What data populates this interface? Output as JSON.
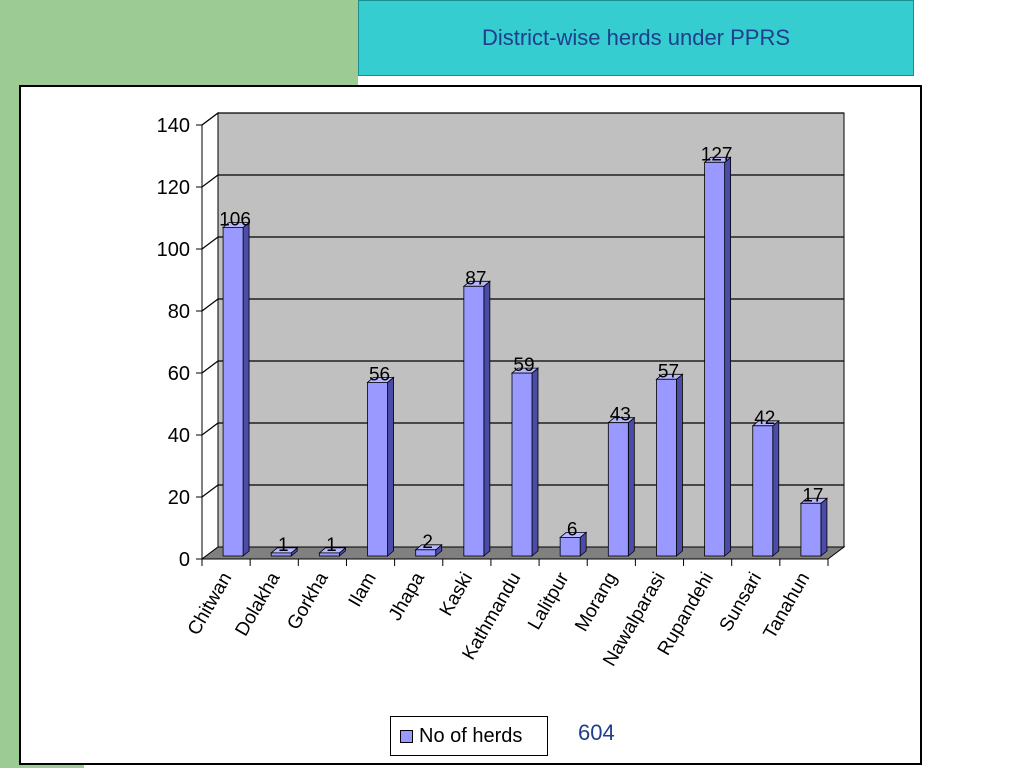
{
  "slide": {
    "title": "District-wise herds under PPRS",
    "total": "604"
  },
  "chart_data": {
    "type": "bar",
    "title": "",
    "xlabel": "",
    "ylabel": "",
    "ylim": [
      0,
      140
    ],
    "yticks": [
      0,
      20,
      40,
      60,
      80,
      100,
      120,
      140
    ],
    "categories": [
      "Chitwan",
      "Dolakha",
      "Gorkha",
      "Ilam",
      "Jhapa",
      "Kaski",
      "Kathmandu",
      "Lalitpur",
      "Morang",
      "Nawalparasi",
      "Rupandehi",
      "Sunsari",
      "Tanahun"
    ],
    "series": [
      {
        "name": "No of herds",
        "values": [
          106,
          1,
          1,
          56,
          2,
          87,
          59,
          6,
          43,
          57,
          127,
          42,
          17
        ]
      }
    ],
    "data_labels": true,
    "grid": true,
    "legend": "bottom",
    "colors": {
      "bar": "#9999ff",
      "bar_side": "#4b4ba8",
      "bar_top": "#b8b8ff",
      "plot_bg": "#c0c0c0",
      "floor": "#808080"
    }
  }
}
